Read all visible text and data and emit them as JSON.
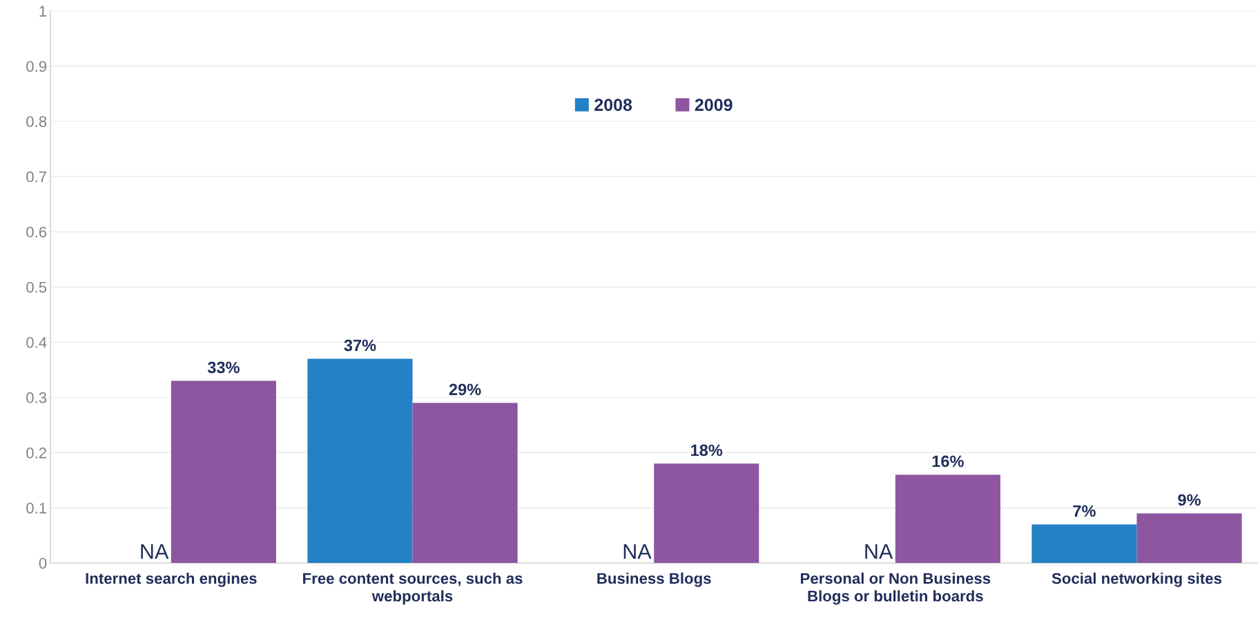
{
  "chart_data": {
    "type": "bar",
    "categories": [
      "Internet search engines",
      "Free content sources, such as webportals",
      "Business Blogs",
      "Personal or Non Business Blogs or bulletin boards",
      "Social networking sites"
    ],
    "series": [
      {
        "name": "2008",
        "color": "#2381c6",
        "values": [
          null,
          0.37,
          null,
          null,
          0.07
        ],
        "value_labels": [
          "NA",
          "37%",
          "NA",
          "NA",
          "7%"
        ]
      },
      {
        "name": "2009",
        "color": "#8e55a0",
        "values": [
          0.33,
          0.29,
          0.18,
          0.16,
          0.09
        ],
        "value_labels": [
          "33%",
          "29%",
          "18%",
          "16%",
          "9%"
        ]
      }
    ],
    "ylim": [
      0,
      1
    ],
    "yticks": [
      0,
      0.1,
      0.2,
      0.3,
      0.4,
      0.5,
      0.6,
      0.7,
      0.8,
      0.9,
      1
    ],
    "grid": "y",
    "legend": "top"
  }
}
